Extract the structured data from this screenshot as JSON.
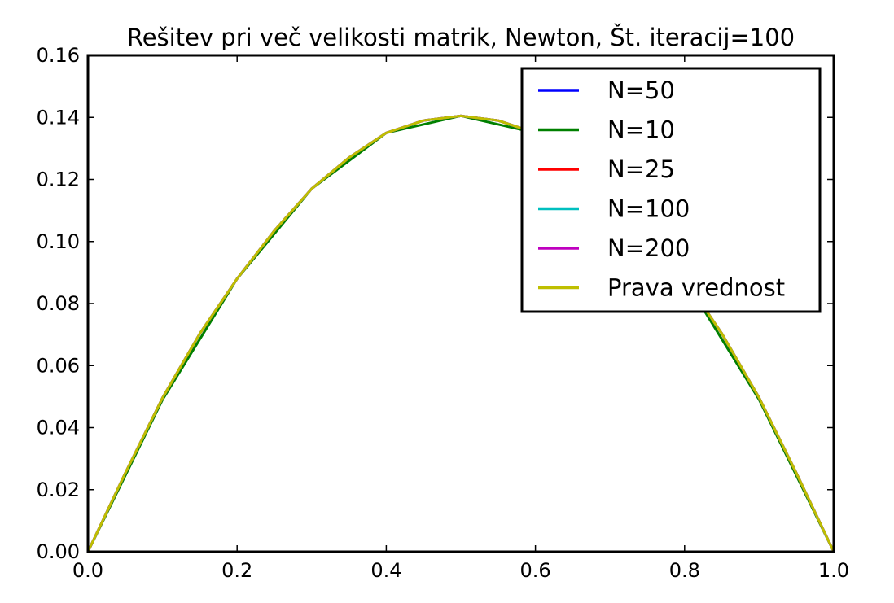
{
  "chart_data": {
    "type": "line",
    "title": "Rešitev pri več velikosti matrik, Newton, Št. iteracij=100",
    "xlabel": "",
    "ylabel": "",
    "xlim": [
      0.0,
      1.0
    ],
    "ylim": [
      0.0,
      0.16
    ],
    "x_ticks": [
      "0.0",
      "0.2",
      "0.4",
      "0.6",
      "0.8",
      "1.0"
    ],
    "y_ticks": [
      "0.00",
      "0.02",
      "0.04",
      "0.06",
      "0.08",
      "0.10",
      "0.12",
      "0.14",
      "0.16"
    ],
    "grid": false,
    "legend_position": "top-right",
    "series": [
      {
        "name": "N=50",
        "color": "#0000ff",
        "x": [
          0.0,
          0.05,
          0.1,
          0.15,
          0.2,
          0.25,
          0.3,
          0.35,
          0.4,
          0.45,
          0.5,
          0.55,
          0.6,
          0.65,
          0.7,
          0.75,
          0.8,
          0.85,
          0.9,
          0.95,
          1.0
        ],
        "y": [
          0.0,
          0.0253,
          0.0496,
          0.0703,
          0.088,
          0.1035,
          0.117,
          0.127,
          0.135,
          0.139,
          0.1405,
          0.139,
          0.135,
          0.127,
          0.117,
          0.1035,
          0.088,
          0.0703,
          0.0496,
          0.0253,
          0.0
        ]
      },
      {
        "name": "N=10",
        "color": "#008000",
        "x": [
          0.0,
          0.1,
          0.2,
          0.3,
          0.4,
          0.5,
          0.6,
          0.7,
          0.8,
          0.9,
          1.0
        ],
        "y": [
          0.0,
          0.049,
          0.088,
          0.117,
          0.135,
          0.1405,
          0.135,
          0.117,
          0.088,
          0.049,
          0.0
        ]
      },
      {
        "name": "N=25",
        "color": "#ff0000",
        "x": [
          0.0,
          0.05,
          0.1,
          0.15,
          0.2,
          0.25,
          0.3,
          0.35,
          0.4,
          0.45,
          0.5,
          0.55,
          0.6,
          0.65,
          0.7,
          0.75,
          0.8,
          0.85,
          0.9,
          0.95,
          1.0
        ],
        "y": [
          0.0,
          0.0253,
          0.0496,
          0.0703,
          0.088,
          0.1035,
          0.117,
          0.127,
          0.135,
          0.139,
          0.1405,
          0.139,
          0.135,
          0.127,
          0.117,
          0.1035,
          0.088,
          0.0703,
          0.0496,
          0.0253,
          0.0
        ]
      },
      {
        "name": "N=100",
        "color": "#00bfbf",
        "x": [
          0.0,
          0.05,
          0.1,
          0.15,
          0.2,
          0.25,
          0.3,
          0.35,
          0.4,
          0.45,
          0.5,
          0.55,
          0.6,
          0.65,
          0.7,
          0.75,
          0.8,
          0.85,
          0.9,
          0.95,
          1.0
        ],
        "y": [
          0.0,
          0.0253,
          0.0496,
          0.0703,
          0.088,
          0.1035,
          0.117,
          0.127,
          0.135,
          0.139,
          0.1405,
          0.139,
          0.135,
          0.127,
          0.117,
          0.1035,
          0.088,
          0.0703,
          0.0496,
          0.0253,
          0.0
        ]
      },
      {
        "name": "N=200",
        "color": "#bf00bf",
        "x": [
          0.0,
          0.05,
          0.1,
          0.15,
          0.2,
          0.25,
          0.3,
          0.35,
          0.4,
          0.45,
          0.5,
          0.55,
          0.6,
          0.65,
          0.7,
          0.75,
          0.8,
          0.85,
          0.9,
          0.95,
          1.0
        ],
        "y": [
          0.0,
          0.0253,
          0.0496,
          0.0703,
          0.088,
          0.1035,
          0.117,
          0.127,
          0.135,
          0.139,
          0.1405,
          0.139,
          0.135,
          0.127,
          0.117,
          0.1035,
          0.088,
          0.0703,
          0.0496,
          0.0253,
          0.0
        ]
      },
      {
        "name": "Prava vrednost",
        "color": "#bfbf00",
        "x": [
          0.0,
          0.05,
          0.1,
          0.15,
          0.2,
          0.25,
          0.3,
          0.35,
          0.4,
          0.45,
          0.5,
          0.55,
          0.6,
          0.65,
          0.7,
          0.75,
          0.8,
          0.85,
          0.9,
          0.95,
          1.0
        ],
        "y": [
          0.0,
          0.0253,
          0.0496,
          0.0703,
          0.088,
          0.1035,
          0.117,
          0.127,
          0.135,
          0.139,
          0.1405,
          0.139,
          0.135,
          0.127,
          0.117,
          0.1035,
          0.088,
          0.0703,
          0.0496,
          0.0253,
          0.0
        ]
      }
    ]
  }
}
